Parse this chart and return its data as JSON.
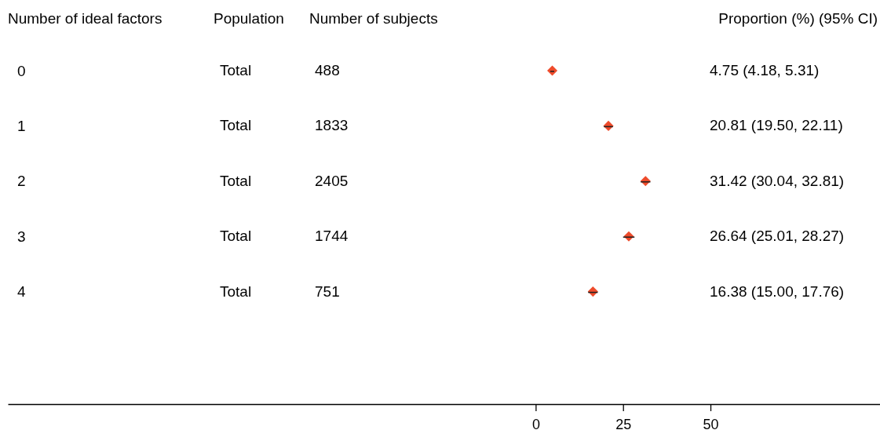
{
  "chart_data": {
    "type": "scatter",
    "orientation": "horizontal",
    "ylabel": "Number of ideal factors",
    "categories": [
      "0",
      "1",
      "2",
      "3",
      "4"
    ],
    "values": [
      4.75,
      20.81,
      31.42,
      26.64,
      16.38
    ],
    "errors": [
      [
        4.18,
        5.31
      ],
      [
        19.5,
        22.11
      ],
      [
        30.04,
        32.81
      ],
      [
        25.01,
        28.27
      ],
      [
        15.0,
        17.76
      ]
    ],
    "color": "#ee4b2b",
    "marker": "diamond",
    "xlim": [
      -151,
      98.5
    ],
    "xticks": [
      0,
      25,
      50
    ],
    "annotations": [
      "Population",
      "Number of subjects",
      "Proportion (%) (95% CI)",
      "Total",
      "488",
      "4.75 (4.18, 5.31)",
      "Total",
      "1833",
      "20.81 (19.50, 22.11)",
      "Total",
      "2405",
      "31.42 (30.04, 32.81)",
      "Total",
      "1744",
      "26.64 (25.01, 28.27)",
      "Total",
      "751",
      "16.38 (15.00, 17.76)"
    ]
  }
}
